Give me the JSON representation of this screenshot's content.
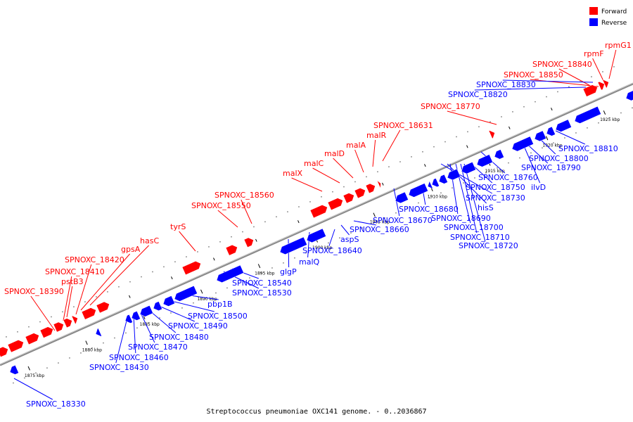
{
  "caption": "Streptococcus pneumoniae OXC141 genome. - 0..2036867",
  "legend": [
    {
      "key": "forward",
      "label": "Forward",
      "color": "#ff0000"
    },
    {
      "key": "reverse",
      "label": "Reverse",
      "color": "#0000ff"
    }
  ],
  "colors": {
    "forward": "#ff0000",
    "reverse": "#0000ff",
    "axis": "#888888"
  },
  "axis": {
    "unit": "kbp",
    "start_kbp": 1873,
    "end_kbp": 1928,
    "ticks": [
      {
        "kbp": 1875,
        "label": "1875 kbp"
      },
      {
        "kbp": 1880,
        "label": "1880 kbp"
      },
      {
        "kbp": 1885,
        "label": "1885 kbp"
      },
      {
        "kbp": 1890,
        "label": "1890 kbp"
      },
      {
        "kbp": 1895,
        "label": "1895 kbp"
      },
      {
        "kbp": 1900,
        "label": "1900 kbp"
      },
      {
        "kbp": 1905,
        "label": "1905 kbp"
      },
      {
        "kbp": 1910,
        "label": "1910 kbp"
      },
      {
        "kbp": 1915,
        "label": "1915 kbp"
      },
      {
        "kbp": 1920,
        "label": "1920 kbp"
      },
      {
        "kbp": 1925,
        "label": "1925 kbp"
      }
    ]
  },
  "forward_labels": [
    "SPNOXC_18390",
    "SPNOXC_18410",
    "pstB3",
    "SPNOXC_18420",
    "gpsA",
    "hasC",
    "tyrS",
    "SPNOXC_18550",
    "SPNOXC_18560",
    "malX",
    "malC",
    "malD",
    "malA",
    "malR",
    "SPNOXC_18631",
    "SPNOXC_18770",
    "SPNOXC_18840",
    "SPNOXC_18850",
    "rpmF",
    "rpmG1"
  ],
  "reverse_labels": [
    "SPNOXC_18330",
    "SPNOXC_18430",
    "SPNOXC_18460",
    "SPNOXC_18470",
    "SPNOXC_18480",
    "SPNOXC_18490",
    "SPNOXC_18500",
    "pbp1B",
    "SPNOXC_18540",
    "SPNOXC_18530",
    "glgP",
    "malQ",
    "SPNOXC_18640",
    "aspS",
    "SPNOXC_18660",
    "SPNOXC_18670",
    "SPNOXC_18680",
    "SPNOXC_18730",
    "hisS",
    "SPNOXC_18690",
    "SPNOXC_18700",
    "SPNOXC_18710",
    "SPNOXC_18720",
    "SPNOXC_18750",
    "SPNOXC_18760",
    "ilvD",
    "SPNOXC_18790",
    "SPNOXC_18800",
    "SPNOXC_18810",
    "SPNOXC_18820",
    "SPNOXC_18830"
  ]
}
